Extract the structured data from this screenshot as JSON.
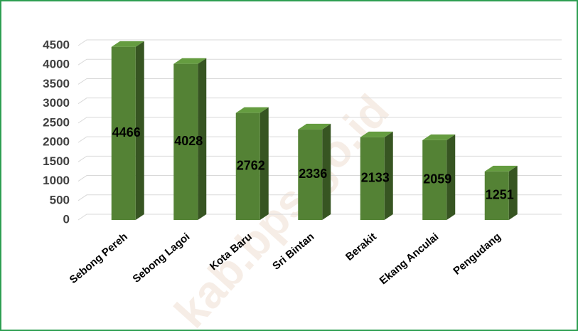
{
  "chart_data": {
    "type": "bar3d",
    "categories": [
      "Sebong Pereh",
      "Sebong Lagoi",
      "Kota Baru",
      "Sri Bintan",
      "Berakit",
      "Ekang Anculai",
      "Pengudang"
    ],
    "values": [
      4466,
      4028,
      2762,
      2336,
      2133,
      2059,
      1251
    ],
    "color": "#548235",
    "ylim": [
      0,
      4500
    ],
    "yticks": [
      0,
      500,
      1000,
      1500,
      2000,
      2500,
      3000,
      3500,
      4000,
      4500
    ],
    "grid": true,
    "watermark": "kab.bps.go.id"
  }
}
